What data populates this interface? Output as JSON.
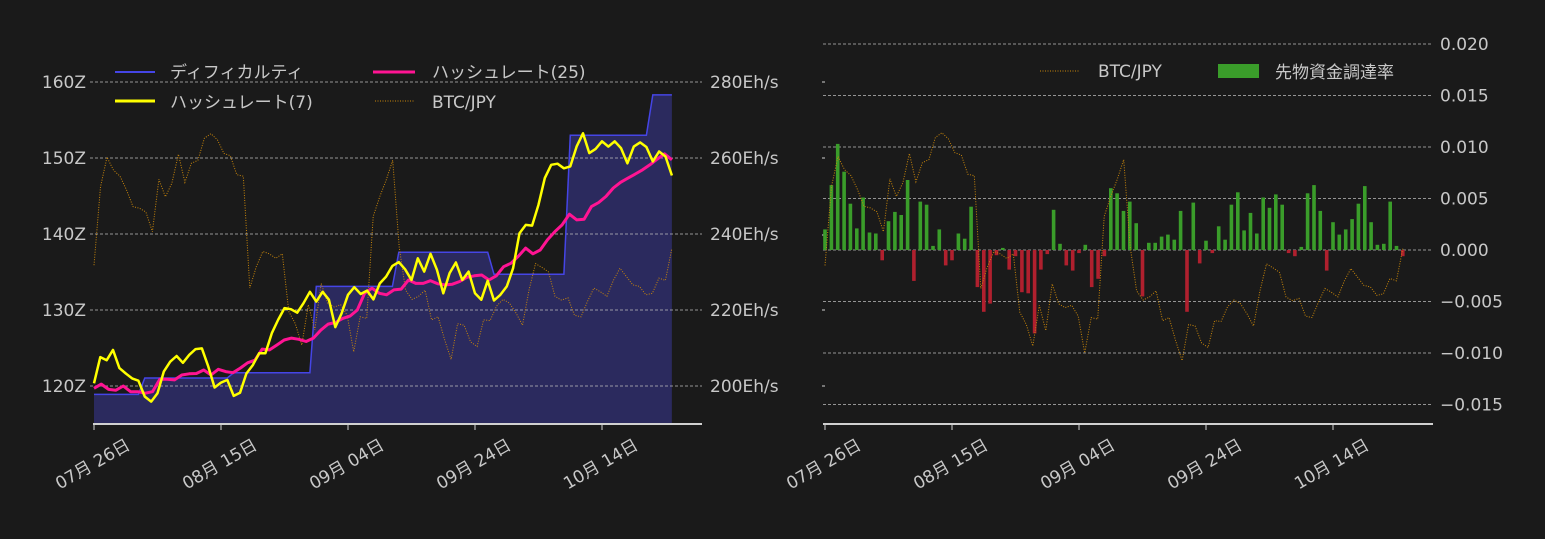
{
  "chart_data": [
    {
      "type": "line",
      "x_range": [
        "07-26",
        "10-25"
      ],
      "xticks": [
        "07月 26日",
        "08月 15日",
        "09月 04日",
        "09月 24日",
        "10月 14日"
      ],
      "y_left_ticks": [
        "120Z",
        "130Z",
        "140Z",
        "150Z",
        "160Z"
      ],
      "y_left_values": [
        120,
        130,
        140,
        150,
        160
      ],
      "y_right_ticks": [
        "200Eh/s",
        "220Eh/s",
        "240Eh/s",
        "260Eh/s",
        "280Eh/s"
      ],
      "y_right_values": [
        200,
        220,
        240,
        260,
        280
      ],
      "ylim_left": [
        115,
        166.8
      ],
      "ylim_right": [
        190,
        293.6
      ],
      "grid": true,
      "legend": {
        "placement": "top-left",
        "columns": 2
      },
      "colors": {
        "difficulty_line": "#4545e6",
        "difficulty_fill": "#2b2a5e",
        "hashrate7": "#ffff00",
        "hashrate25": "#ff1493",
        "btc": "#c8860b"
      },
      "series": [
        {
          "name": "ディフィカルティ",
          "axis": "left",
          "unit": "Z",
          "style": "step-area",
          "steps": [
            {
              "from_day": 0,
              "value": 118.9
            },
            {
              "from_day": 8,
              "value": 121.05
            },
            {
              "from_day": 22,
              "value": 121.75
            },
            {
              "from_day": 35,
              "value": 133.1
            },
            {
              "from_day": 48,
              "value": 137.6
            },
            {
              "from_day": 63,
              "value": 134.7
            },
            {
              "from_day": 75,
              "value": 153.0
            },
            {
              "from_day": 88,
              "value": 158.3
            }
          ]
        },
        {
          "name": "ハッシュレート(25)",
          "axis": "right",
          "unit": "Eh/s",
          "values": [
            199.4,
            200.5,
            199.1,
            198.9,
            200.0,
            198.5,
            198.5,
            198.1,
            198.5,
            201.8,
            201.8,
            201.6,
            202.9,
            203.2,
            203.3,
            204.2,
            202.9,
            204.4,
            203.8,
            203.5,
            204.7,
            206.1,
            206.8,
            209.7,
            209.5,
            210.8,
            212.1,
            212.6,
            212.3,
            211.7,
            212.6,
            214.7,
            216.3,
            216.7,
            217.8,
            218.4,
            220.0,
            224.4,
            225.7,
            224.4,
            224.0,
            225.3,
            225.5,
            227.9,
            227.0,
            227.0,
            227.7,
            226.9,
            226.6,
            226.8,
            227.5,
            228.6,
            229.0,
            229.2,
            227.9,
            229.0,
            231.4,
            232.3,
            234.1,
            236.3,
            234.8,
            235.8,
            238.5,
            240.6,
            242.4,
            245.2,
            243.7,
            243.9,
            247.2,
            248.3,
            249.9,
            252.1,
            253.6,
            254.7,
            255.8,
            256.9,
            258.2,
            259.7,
            261.1,
            259.5
          ]
        },
        {
          "name": "ハッシュレート(7)",
          "axis": "right",
          "unit": "Eh/s",
          "values": [
            200.7,
            207.6,
            206.8,
            209.5,
            204.7,
            203.3,
            202.0,
            201.4,
            197.2,
            195.9,
            198.1,
            203.8,
            206.4,
            207.9,
            206.1,
            208.2,
            209.7,
            209.9,
            205.1,
            199.6,
            200.9,
            201.6,
            197.4,
            198.2,
            203.3,
            205.5,
            208.6,
            208.6,
            213.9,
            217.4,
            220.5,
            220.2,
            219.3,
            221.8,
            224.8,
            222.2,
            224.8,
            222.7,
            215.5,
            219.1,
            224.0,
            226.0,
            224.2,
            225.1,
            222.8,
            227.0,
            228.8,
            231.6,
            232.6,
            230.7,
            227.9,
            233.6,
            230.1,
            234.8,
            230.6,
            224.4,
            229.7,
            232.5,
            227.9,
            230.1,
            224.4,
            222.7,
            227.7,
            222.5,
            224.0,
            226.2,
            231.0,
            240.2,
            242.4,
            242.2,
            247.7,
            254.7,
            258.2,
            258.5,
            257.3,
            257.8,
            263.0,
            266.5,
            261.3,
            262.4,
            264.4,
            263.0,
            264.4,
            262.6,
            258.6,
            263.0,
            264.1,
            262.9,
            259.1,
            261.7,
            260.4,
            255.4
          ]
        },
        {
          "name": "BTC/JPY",
          "axis": "hidden",
          "style": "dotted",
          "values": [
            135.9,
            146.2,
            150.1,
            148.4,
            147.6,
            145.8,
            143.6,
            143.4,
            142.9,
            140.3,
            147.2,
            144.9,
            146.7,
            150.5,
            146.8,
            149.3,
            149.7,
            152.6,
            153.2,
            152.4,
            150.6,
            150.3,
            147.8,
            147.6,
            132.9,
            135.7,
            137.7,
            137.4,
            136.8,
            137.4,
            129.8,
            128.2,
            125.4,
            130.7,
            127.4,
            133.5,
            130.9,
            130.4,
            130.7,
            129.3,
            124.5,
            129.1,
            128.9,
            142.3,
            144.9,
            147.1,
            149.7,
            138.3,
            132.6,
            131.4,
            131.8,
            132.6,
            128.7,
            129.1,
            126.1,
            123.5,
            128.2,
            128.0,
            125.8,
            125.2,
            128.7,
            128.6,
            130.5,
            131.4,
            130.9,
            129.6,
            128.0,
            132.6,
            136.1,
            135.6,
            135.0,
            131.8,
            131.3,
            131.6,
            129.3,
            129.1,
            131.1,
            132.9,
            132.4,
            131.8,
            133.9,
            135.5,
            134.4,
            133.3,
            133.1,
            132.0,
            132.2,
            134.2,
            133.9,
            138.1
          ]
        }
      ]
    },
    {
      "type": "bar",
      "x_range": [
        "07-26",
        "10-25"
      ],
      "xticks": [
        "07月 26日",
        "08月 15日",
        "09月 04日",
        "09月 24日",
        "10月 14日"
      ],
      "y_right_ticks": [
        "0.020",
        "0.015",
        "0.010",
        "0.005",
        "0.000",
        "−0.005",
        "−0.010",
        "−0.015"
      ],
      "y_right_values": [
        0.02,
        0.015,
        0.01,
        0.005,
        0.0,
        -0.005,
        -0.01,
        -0.015
      ],
      "ylim": [
        -0.0169,
        0.0214
      ],
      "grid": true,
      "legend": {
        "placement": "top-right",
        "columns": 2
      },
      "colors": {
        "positive": "#3a9d2a",
        "negative": "#b0202e",
        "btc": "#c8860b"
      },
      "series": [
        {
          "name": "BTC/JPY",
          "axis": "hidden",
          "style": "dotted",
          "same_as": "BTC/JPY"
        },
        {
          "name": "先物資金調達率",
          "axis": "right",
          "values": [
            0.002,
            0.0063,
            0.0103,
            0.0076,
            0.0045,
            0.0021,
            0.0051,
            0.0017,
            0.0016,
            -0.001,
            0.0028,
            0.0037,
            0.0034,
            0.0068,
            -0.003,
            0.0047,
            0.0044,
            0.0004,
            0.002,
            -0.0015,
            -0.001,
            0.0016,
            0.0011,
            0.0042,
            -0.0036,
            -0.006,
            -0.0052,
            -0.0005,
            0.0002,
            -0.0019,
            -0.0006,
            -0.0041,
            -0.0042,
            -0.0081,
            -0.0019,
            -0.0004,
            0.0039,
            0.0006,
            -0.0015,
            -0.002,
            -0.0003,
            0.0005,
            -0.0036,
            -0.0028,
            -0.0006,
            0.006,
            0.0055,
            0.0038,
            0.0047,
            0.0026,
            -0.0045,
            0.0007,
            0.0007,
            0.0013,
            0.0015,
            0.001,
            0.0038,
            -0.006,
            0.0046,
            -0.0013,
            0.0009,
            -0.0003,
            0.0023,
            0.001,
            0.0044,
            0.0056,
            0.0019,
            0.0036,
            0.0016,
            0.0051,
            0.0041,
            0.0054,
            0.0044,
            -0.0003,
            -0.0006,
            0.0003,
            0.0055,
            0.0063,
            0.0038,
            -0.002,
            0.0027,
            0.0015,
            0.002,
            0.003,
            0.0045,
            0.0062,
            0.0027,
            0.0005,
            0.0006,
            0.0047,
            0.0004,
            -0.0006
          ]
        }
      ]
    }
  ]
}
